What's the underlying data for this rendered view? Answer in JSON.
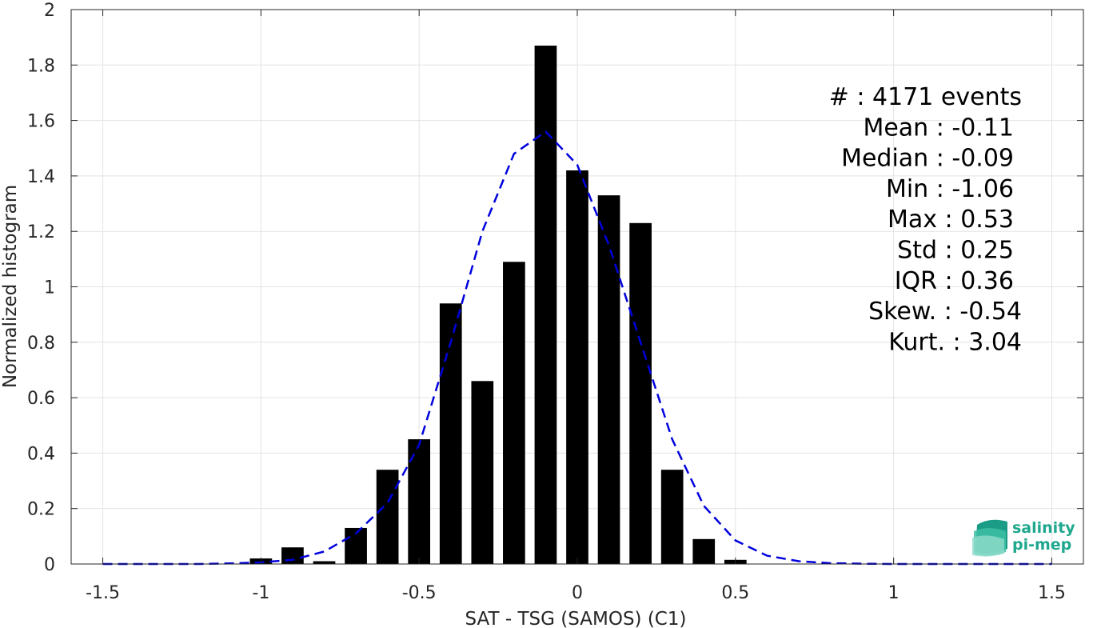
{
  "chart_data": {
    "type": "bar",
    "title": "",
    "xlabel": "SAT - TSG (SAMOS) (C1)",
    "ylabel": "Normalized histogram",
    "xlim": [
      -1.6,
      1.6
    ],
    "ylim": [
      0,
      2
    ],
    "grid": true,
    "bar_width": 0.07,
    "x_ticks": [
      -1.5,
      -1,
      -0.5,
      0,
      0.5,
      1,
      1.5
    ],
    "x_tick_labels": [
      "-1.5",
      "-1",
      "-0.5",
      "0",
      "0.5",
      "1",
      "1.5"
    ],
    "y_ticks": [
      0,
      0.2,
      0.4,
      0.6,
      0.8,
      1,
      1.2,
      1.4,
      1.6,
      1.8,
      2
    ],
    "y_tick_labels": [
      "0",
      "0.2",
      "0.4",
      "0.6",
      "0.8",
      "1",
      "1.2",
      "1.4",
      "1.6",
      "1.8",
      "2"
    ],
    "bars": {
      "x": [
        -1.0,
        -0.9,
        -0.8,
        -0.7,
        -0.6,
        -0.5,
        -0.4,
        -0.3,
        -0.2,
        -0.1,
        0.0,
        0.1,
        0.2,
        0.3,
        0.4,
        0.5
      ],
      "values": [
        0.02,
        0.06,
        0.01,
        0.13,
        0.34,
        0.45,
        0.94,
        0.66,
        1.09,
        1.87,
        1.42,
        1.33,
        1.23,
        0.34,
        0.09,
        0.015
      ],
      "color": "#000000"
    },
    "fit": {
      "style": "dashed",
      "color": "#0000dd",
      "x": [
        -1.5,
        -1.4,
        -1.3,
        -1.2,
        -1.1,
        -1.0,
        -0.9,
        -0.8,
        -0.7,
        -0.6,
        -0.5,
        -0.4,
        -0.3,
        -0.2,
        -0.1,
        0.0,
        0.1,
        0.2,
        0.3,
        0.4,
        0.5,
        0.6,
        0.7,
        0.8,
        0.9,
        1.0,
        1.1,
        1.2,
        1.3,
        1.4,
        1.5
      ],
      "y": [
        0,
        0,
        0,
        0,
        0.002,
        0.006,
        0.015,
        0.045,
        0.11,
        0.22,
        0.43,
        0.8,
        1.2,
        1.48,
        1.56,
        1.44,
        1.15,
        0.8,
        0.45,
        0.21,
        0.085,
        0.03,
        0.01,
        0.003,
        0.001,
        0,
        0,
        0,
        0,
        0,
        0
      ]
    },
    "annotations": [
      "#  : 4171 events",
      "Mean : -0.11",
      "Median : -0.09",
      "Min : -1.06",
      "Max : 0.53",
      "Std : 0.25",
      "IQR : 0.36",
      "Skew. : -0.54",
      "Kurt. : 3.04"
    ]
  },
  "logo": {
    "line1": "salinity",
    "line2": "pi-mep",
    "color": "#1fa88e"
  }
}
